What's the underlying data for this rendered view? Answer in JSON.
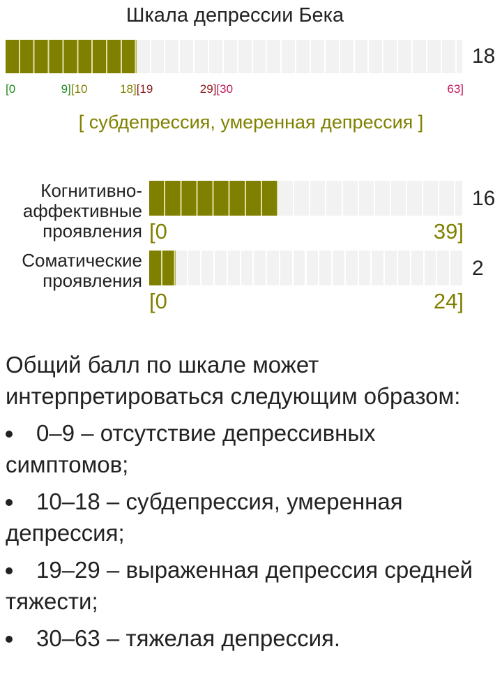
{
  "title": "Шкала депрессии Бека",
  "total": {
    "score": 18,
    "ranges": [
      {
        "from": {
          "value": 0,
          "label": "[0"
        },
        "to": {
          "value": 9,
          "label": "9]"
        },
        "color": "#1f8a1f"
      },
      {
        "from": {
          "value": 10,
          "label": "[10"
        },
        "to": {
          "value": 18,
          "label": "18]"
        },
        "color": "#808000"
      },
      {
        "from": {
          "value": 19,
          "label": "[19"
        },
        "to": {
          "value": 29,
          "label": "29]"
        },
        "color": "#8b1a1a"
      },
      {
        "from": {
          "value": 30,
          "label": "[30"
        },
        "to": {
          "value": 63,
          "label": "63]"
        },
        "color": "#c2185b"
      }
    ],
    "result": "[ субдепрессия, умеренная депрессия ]",
    "fill_color": "#808000"
  },
  "subscales": [
    {
      "label": "Когнитивно-аффективные проявления",
      "score": 16,
      "min": {
        "value": 0,
        "label": "[0"
      },
      "max": {
        "value": 39,
        "label": "39]"
      }
    },
    {
      "label": "Соматические проявления",
      "score": 2,
      "min": {
        "value": 0,
        "label": "[0"
      },
      "max": {
        "value": 24,
        "label": "24]"
      }
    }
  ],
  "interpretation": {
    "intro": "Общий балл по шкале может интерпретироваться следующим образом:",
    "items": [
      "0–9 – отсутствие депрессивных симптомов;",
      "10–18 – субдепрессия, умеренная депрессия;",
      "19–29 – выраженная депрессия средней тяжести;",
      "30–63 – тяжелая депрессия."
    ]
  }
}
